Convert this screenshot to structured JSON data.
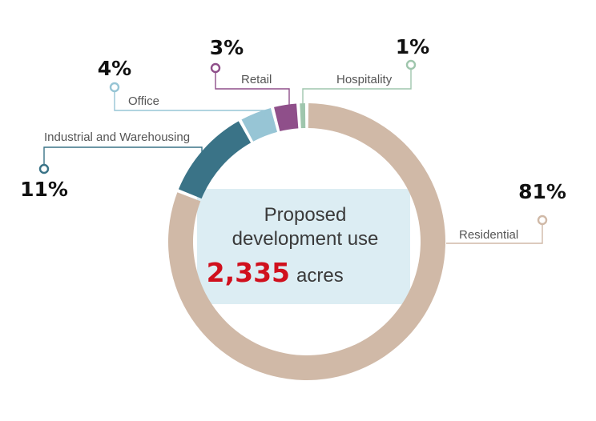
{
  "chart_data": {
    "type": "pie",
    "categories": [
      "Residential",
      "Industrial and Warehousing",
      "Office",
      "Retail",
      "Hospitality"
    ],
    "values": [
      81,
      11,
      4,
      3,
      1
    ],
    "value_labels": [
      "81%",
      "11%",
      "4%",
      "3%",
      "1%"
    ],
    "colors": [
      "#d0b9a7",
      "#3a7387",
      "#97c5d5",
      "#8f4f8a",
      "#9fc6ad"
    ],
    "center": {
      "line1": "Proposed",
      "line2": "development use",
      "total": "2,335",
      "unit": "acres",
      "total_color": "#d0101d",
      "box_color": "#dcedf3"
    },
    "style": "donut",
    "legend": "callouts"
  }
}
